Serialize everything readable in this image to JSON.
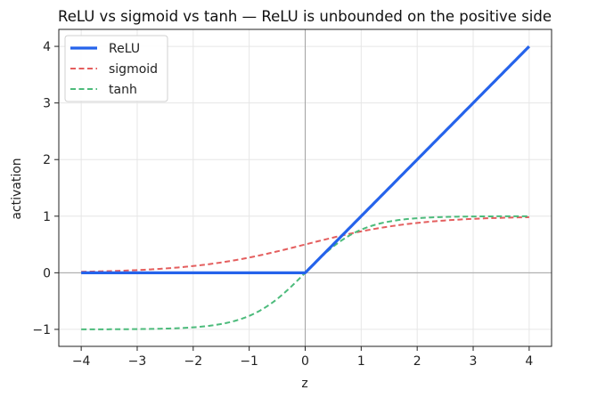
{
  "chart_data": {
    "type": "line",
    "title": "ReLU vs sigmoid vs tanh — ReLU is unbounded on the positive side",
    "xlabel": "z",
    "ylabel": "activation",
    "xlim": [
      -4.4,
      4.4
    ],
    "ylim": [
      -1.3,
      4.3
    ],
    "xticks": [
      -4,
      -3,
      -2,
      -1,
      0,
      1,
      2,
      3,
      4
    ],
    "xtick_labels": [
      "−4",
      "−3",
      "−2",
      "−1",
      "0",
      "1",
      "2",
      "3",
      "4"
    ],
    "yticks": [
      -1,
      0,
      1,
      2,
      3,
      4
    ],
    "ytick_labels": [
      "−1",
      "0",
      "1",
      "2",
      "3",
      "4"
    ],
    "grid": true,
    "zero_lines": true,
    "legend_position": "top-left",
    "x": [
      -4,
      -3.5,
      -3,
      -2.5,
      -2,
      -1.5,
      -1,
      -0.5,
      0,
      0.5,
      1,
      1.5,
      2,
      2.5,
      3,
      3.5,
      4
    ],
    "series": [
      {
        "name": "ReLU",
        "color": "#2563eb",
        "style": "solid",
        "values": [
          0,
          0,
          0,
          0,
          0,
          0,
          0,
          0,
          0,
          0.5,
          1,
          1.5,
          2,
          2.5,
          3,
          3.5,
          4
        ]
      },
      {
        "name": "sigmoid",
        "color": "#e45e5e",
        "style": "dashed",
        "values": [
          0.018,
          0.029,
          0.047,
          0.076,
          0.119,
          0.182,
          0.269,
          0.378,
          0.5,
          0.622,
          0.731,
          0.818,
          0.881,
          0.924,
          0.953,
          0.971,
          0.982
        ]
      },
      {
        "name": "tanh",
        "color": "#4cbb7b",
        "style": "dashed",
        "values": [
          -0.999,
          -0.998,
          -0.995,
          -0.987,
          -0.964,
          -0.905,
          -0.762,
          -0.462,
          0,
          0.462,
          0.762,
          0.905,
          0.964,
          0.987,
          0.995,
          0.998,
          0.999
        ]
      }
    ]
  }
}
